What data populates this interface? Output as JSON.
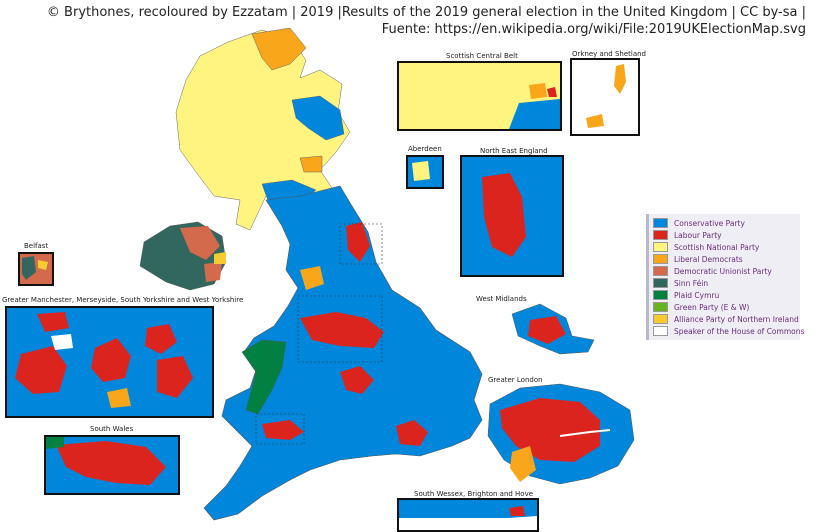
{
  "attribution": {
    "line1": "© Brythones, recoloured by Ezzatam | 2019 |Results of the 2019 general election in the United Kingdom | CC by-sa |",
    "line2": "Fuente: https://en.wikipedia.org/wiki/File:2019UKElectionMap.svg"
  },
  "insets": {
    "belfast": "Belfast",
    "greater_manchester": "Greater Manchester, Merseyside, South Yorkshire and West Yorkshire",
    "south_wales": "South Wales",
    "scottish_central_belt": "Scottish Central Belt",
    "orkney_shetland": "Orkney and Shetland",
    "aberdeen": "Aberdeen",
    "north_east_england": "North East England",
    "west_midlands": "West Midlands",
    "greater_london": "Greater London",
    "south_wessex": "South Wessex, Brighton and Hove"
  },
  "legend": [
    {
      "name": "Conservative Party",
      "color": "#0087dc"
    },
    {
      "name": "Labour Party",
      "color": "#dc241f"
    },
    {
      "name": "Scottish National Party",
      "color": "#fff480"
    },
    {
      "name": "Liberal Democrats",
      "color": "#faa61a"
    },
    {
      "name": "Democratic Unionist Party",
      "color": "#d46a4c"
    },
    {
      "name": "Sinn Féin",
      "color": "#326760"
    },
    {
      "name": "Plaid Cymru",
      "color": "#008142"
    },
    {
      "name": "Green Party (E & W)",
      "color": "#6ab023"
    },
    {
      "name": "Alliance Party of Northern Ireland",
      "color": "#f6cb2f"
    },
    {
      "name": "Speaker of the House of Commons",
      "color": "#ffffff"
    }
  ]
}
